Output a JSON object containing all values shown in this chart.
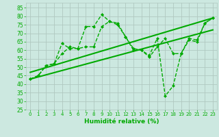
{
  "xlabel": "Humidité relative (%)",
  "background_color": "#cce8e0",
  "grid_color": "#b0c8c0",
  "line_color": "#00aa00",
  "xlim": [
    -0.5,
    23.5
  ],
  "ylim": [
    25,
    88
  ],
  "yticks": [
    25,
    30,
    35,
    40,
    45,
    50,
    55,
    60,
    65,
    70,
    75,
    80,
    85
  ],
  "xticks": [
    0,
    1,
    2,
    3,
    4,
    5,
    6,
    7,
    8,
    9,
    10,
    11,
    12,
    13,
    14,
    15,
    16,
    17,
    18,
    19,
    20,
    21,
    22,
    23
  ],
  "series": [
    {
      "x": [
        0,
        1,
        2,
        3,
        4,
        5,
        6,
        7,
        8,
        9,
        10,
        11,
        12,
        13,
        14,
        15,
        16,
        17,
        18,
        19,
        20,
        21,
        22,
        23
      ],
      "y": [
        43,
        45,
        51,
        52,
        58,
        62,
        61,
        74,
        74,
        81,
        77,
        76,
        68,
        61,
        60,
        57,
        67,
        33,
        39,
        58,
        67,
        66,
        76,
        79
      ],
      "marker": "D",
      "markersize": 2.5,
      "linewidth": 1.0,
      "linestyle": "--"
    },
    {
      "x": [
        0,
        1,
        2,
        3,
        4,
        5,
        6,
        7,
        8,
        9,
        10,
        11,
        12,
        13,
        14,
        15,
        16,
        17,
        18,
        19,
        20,
        21,
        22,
        23
      ],
      "y": [
        43,
        45,
        51,
        52,
        64,
        61,
        61,
        62,
        62,
        74,
        77,
        75,
        68,
        60,
        60,
        56,
        62,
        67,
        58,
        58,
        66,
        65,
        76,
        79
      ],
      "marker": "D",
      "markersize": 2.5,
      "linewidth": 1.0,
      "linestyle": "--"
    },
    {
      "x": [
        0,
        23
      ],
      "y": [
        47,
        79
      ],
      "marker": null,
      "markersize": 0,
      "linewidth": 1.5,
      "linestyle": "-"
    },
    {
      "x": [
        0,
        23
      ],
      "y": [
        43,
        72
      ],
      "marker": null,
      "markersize": 0,
      "linewidth": 1.5,
      "linestyle": "-"
    }
  ]
}
